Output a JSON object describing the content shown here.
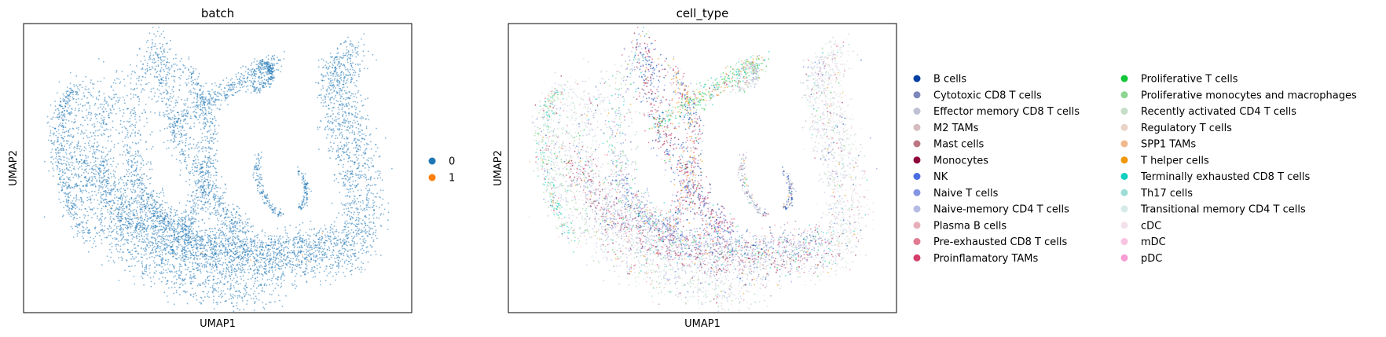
{
  "chart_data": [
    {
      "type": "scatter",
      "title": "batch",
      "xlabel": "UMAP1",
      "ylabel": "UMAP2",
      "legend_position": "right",
      "categories": [
        {
          "label": "0",
          "color": "#1f77b4"
        },
        {
          "label": "1",
          "color": "#ff7f0e"
        }
      ]
    },
    {
      "type": "scatter",
      "title": "cell_type",
      "xlabel": "UMAP1",
      "ylabel": "UMAP2",
      "legend_position": "right",
      "legend_columns": 2,
      "categories": [
        {
          "label": "B cells",
          "color": "#023fa5"
        },
        {
          "label": "Cytotoxic CD8 T cells",
          "color": "#7d87b9"
        },
        {
          "label": "Effector memory CD8 T cells",
          "color": "#bec1d4"
        },
        {
          "label": "M2 TAMs",
          "color": "#d6bcc0"
        },
        {
          "label": "Mast cells",
          "color": "#bb7784"
        },
        {
          "label": "Monocytes",
          "color": "#8e063b"
        },
        {
          "label": "NK",
          "color": "#4a6fe3"
        },
        {
          "label": "Naive T cells",
          "color": "#8595e1"
        },
        {
          "label": "Naive-memory CD4 T cells",
          "color": "#b5bbe3"
        },
        {
          "label": "Plasma B cells",
          "color": "#e6afb9"
        },
        {
          "label": "Pre-exhausted CD8 T cells",
          "color": "#e07b91"
        },
        {
          "label": "Proinflamatory TAMs",
          "color": "#d33f6a"
        },
        {
          "label": "Proliferative T cells",
          "color": "#11c638"
        },
        {
          "label": "Proliferative monocytes and macrophages",
          "color": "#8dd593"
        },
        {
          "label": "Recently activated CD4 T cells",
          "color": "#c6dec7"
        },
        {
          "label": "Regulatory T cells",
          "color": "#ead3c6"
        },
        {
          "label": "SPP1 TAMs",
          "color": "#f0b98d"
        },
        {
          "label": "T helper cells",
          "color": "#ef9708"
        },
        {
          "label": "Terminally exhausted CD8 T cells",
          "color": "#0fcfc0"
        },
        {
          "label": "Th17 cells",
          "color": "#9cded6"
        },
        {
          "label": "Transitional memory CD4 T cells",
          "color": "#d5eae7"
        },
        {
          "label": "cDC",
          "color": "#f3e1eb"
        },
        {
          "label": "mDC",
          "color": "#f6c4e1"
        },
        {
          "label": "pDC",
          "color": "#f79cd4"
        }
      ]
    }
  ]
}
